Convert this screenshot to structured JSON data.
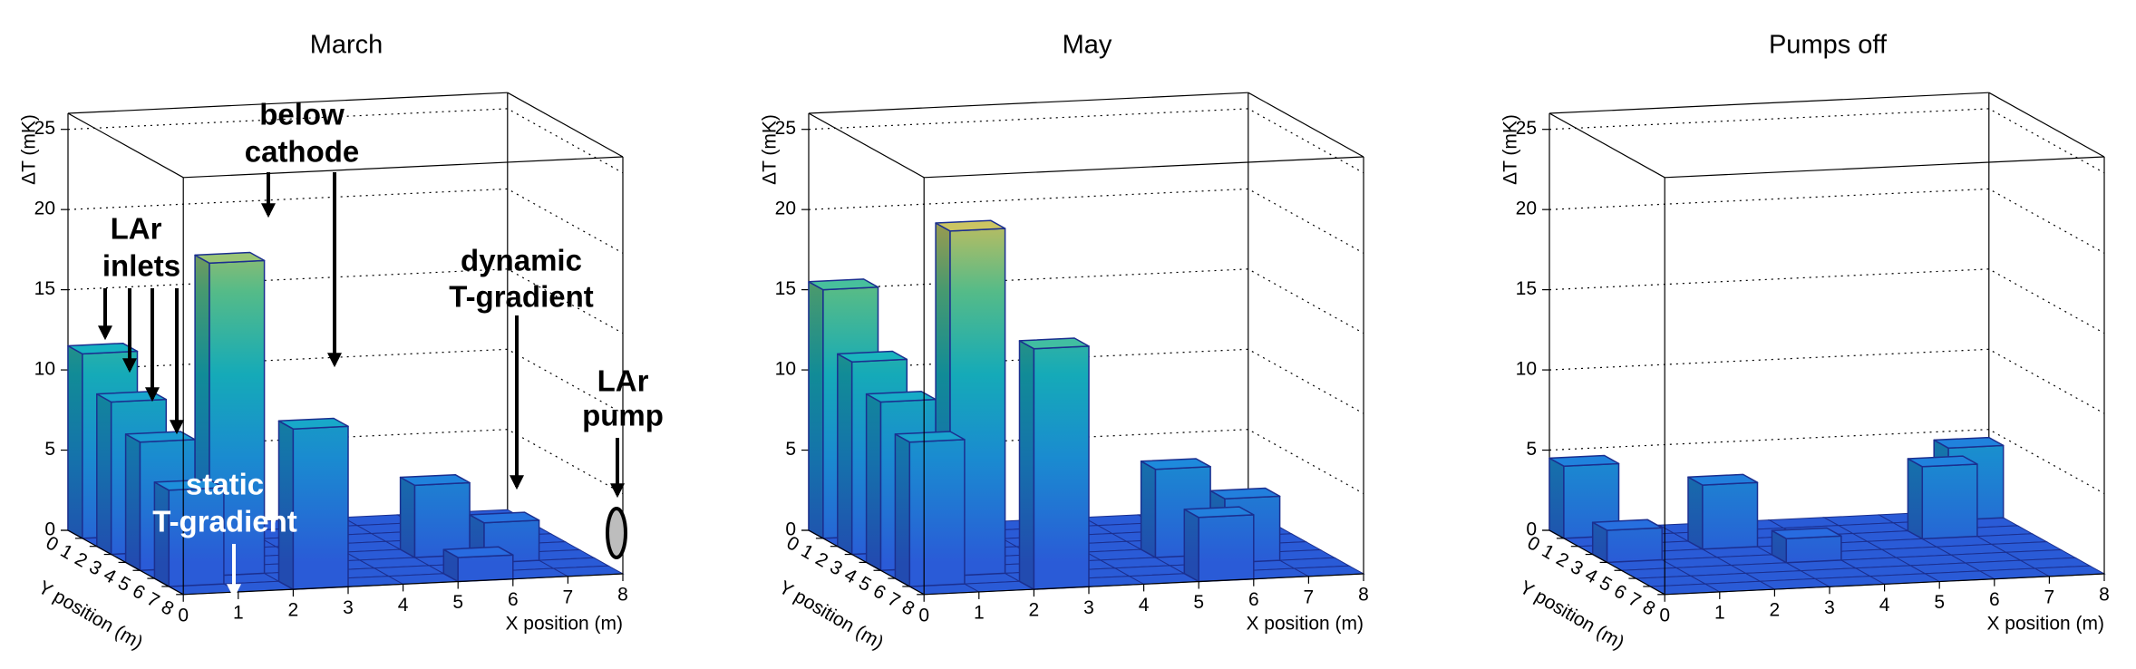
{
  "chart_data": [
    {
      "type": "lego",
      "title": "March",
      "xlabel": "X position (m)",
      "ylabel": "Y position (m)",
      "zlabel": "ΔT (mK)",
      "xlim": [
        0,
        8
      ],
      "ylim": [
        0,
        8
      ],
      "zlim": [
        0,
        26
      ],
      "xticks": [
        0,
        1,
        2,
        3,
        4,
        5,
        6,
        7,
        8
      ],
      "yticks": [
        0,
        1,
        2,
        3,
        4,
        5,
        6,
        7,
        8
      ],
      "zticks": [
        0,
        5,
        10,
        15,
        20,
        25
      ],
      "grid": true,
      "bars": [
        {
          "x": 0,
          "y": 0,
          "value": 11.5
        },
        {
          "x": 0,
          "y": 2,
          "value": 9.5
        },
        {
          "x": 5,
          "y": 4,
          "value": 4.5
        },
        {
          "x": 0,
          "y": 4,
          "value": 8
        },
        {
          "x": 6,
          "y": 5,
          "value": 2.5
        },
        {
          "x": 1,
          "y": 5,
          "value": 19.5
        },
        {
          "x": 0,
          "y": 6,
          "value": 6
        },
        {
          "x": 5,
          "y": 7,
          "value": 1.5
        },
        {
          "x": 2,
          "y": 7,
          "value": 10
        }
      ],
      "annotations": [
        {
          "lines": [
            "below",
            "cathode"
          ],
          "color": "#000000"
        },
        {
          "lines": [
            "LAr",
            "inlets"
          ],
          "color": "#000000"
        },
        {
          "lines": [
            "dynamic",
            "T-gradient"
          ],
          "color": "#000000"
        },
        {
          "lines": [
            "LAr",
            "pump"
          ],
          "color": "#000000"
        },
        {
          "lines": [
            "static",
            "T-gradient"
          ],
          "color": "#ffffff"
        }
      ]
    },
    {
      "type": "lego",
      "title": "May",
      "xlabel": "X position (m)",
      "ylabel": "Y position (m)",
      "zlabel": "ΔT (mK)",
      "xlim": [
        0,
        8
      ],
      "ylim": [
        0,
        8
      ],
      "zlim": [
        0,
        26
      ],
      "xticks": [
        0,
        1,
        2,
        3,
        4,
        5,
        6,
        7,
        8
      ],
      "yticks": [
        0,
        1,
        2,
        3,
        4,
        5,
        6,
        7,
        8
      ],
      "zticks": [
        0,
        5,
        10,
        15,
        20,
        25
      ],
      "grid": true,
      "bars": [
        {
          "x": 0,
          "y": 0,
          "value": 15.5
        },
        {
          "x": 0,
          "y": 2,
          "value": 12
        },
        {
          "x": 5,
          "y": 4,
          "value": 5.5
        },
        {
          "x": 0,
          "y": 4,
          "value": 10.5
        },
        {
          "x": 6,
          "y": 5,
          "value": 4
        },
        {
          "x": 1,
          "y": 5,
          "value": 21.5
        },
        {
          "x": 0,
          "y": 6,
          "value": 9
        },
        {
          "x": 5,
          "y": 7,
          "value": 4
        },
        {
          "x": 2,
          "y": 7,
          "value": 15
        }
      ]
    },
    {
      "type": "lego",
      "title": "Pumps off",
      "xlabel": "X position (m)",
      "ylabel": "Y position (m)",
      "zlabel": "ΔT (mK)",
      "xlim": [
        0,
        8
      ],
      "ylim": [
        0,
        8
      ],
      "zlim": [
        0,
        26
      ],
      "xticks": [
        0,
        1,
        2,
        3,
        4,
        5,
        6,
        7,
        8
      ],
      "yticks": [
        0,
        1,
        2,
        3,
        4,
        5,
        6,
        7,
        8
      ],
      "zticks": [
        0,
        5,
        10,
        15,
        20,
        25
      ],
      "grid": true,
      "bars": [
        {
          "x": 7,
          "y": 0,
          "value": 4.5
        },
        {
          "x": 0,
          "y": 0,
          "value": 4.5
        },
        {
          "x": 6,
          "y": 2,
          "value": 4.5
        },
        {
          "x": 2,
          "y": 2,
          "value": 4
        },
        {
          "x": 0,
          "y": 3,
          "value": 2
        },
        {
          "x": 3,
          "y": 4,
          "value": 1.5
        }
      ]
    }
  ]
}
